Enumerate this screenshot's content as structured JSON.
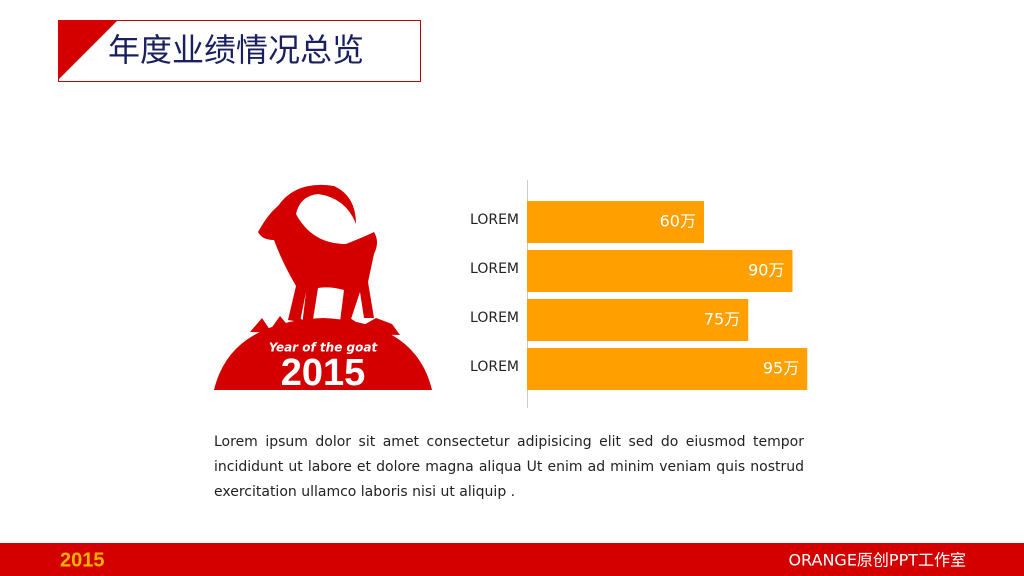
{
  "header": {
    "title": "年度业绩情况总览"
  },
  "illustration": {
    "caption": "Year of the goat",
    "year": "2015"
  },
  "chart_data": {
    "type": "bar",
    "orientation": "horizontal",
    "categories": [
      "LOREM",
      "LOREM",
      "LOREM",
      "LOREM"
    ],
    "values": [
      60,
      90,
      75,
      95
    ],
    "value_labels": [
      "60万",
      "90万",
      "75万",
      "95万"
    ],
    "color": "#ffa000",
    "xlim": [
      0,
      100
    ]
  },
  "body": {
    "paragraph": "Lorem ipsum dolor sit amet consectetur adipisicing elit sed do eiusmod tempor incididunt ut labore et dolore magna aliqua Ut enim ad minim veniam quis nostrud exercitation ullamco laboris nisi ut aliquip ."
  },
  "footer": {
    "logo": "2015",
    "brand": "ORANGE原创PPT工作室"
  }
}
